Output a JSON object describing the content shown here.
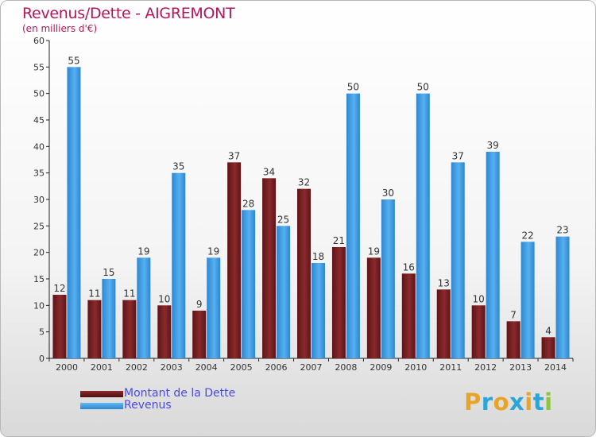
{
  "title": "Revenus/Dette - AIGREMONT",
  "subtitle": "(en milliers d'€)",
  "colors": {
    "title": "#b5165b",
    "dette": "#7a1f22",
    "revenus": "#3d9ce6",
    "legend_text": "#4a4adf"
  },
  "legend": [
    {
      "label": "Montant de la Dette",
      "color": "#7a1f22"
    },
    {
      "label": "Revenus",
      "color": "#3d9ce6"
    }
  ],
  "logo": {
    "text": "Proxiti",
    "letters": [
      {
        "ch": "P",
        "color": "#e8a428"
      },
      {
        "ch": "r",
        "color": "#2aa6d6"
      },
      {
        "ch": "o",
        "color": "#e8a428"
      },
      {
        "ch": "x",
        "color": "#2aa6d6"
      },
      {
        "ch": "i",
        "color": "#e8a428"
      },
      {
        "ch": "t",
        "color": "#2aa6d6"
      },
      {
        "ch": "i",
        "color": "#8cc63f"
      }
    ]
  },
  "chart_data": {
    "type": "bar",
    "title": "Revenus/Dette - AIGREMONT",
    "subtitle": "(en milliers d'€)",
    "categories": [
      "2000",
      "2001",
      "2002",
      "2003",
      "2004",
      "2005",
      "2006",
      "2007",
      "2008",
      "2009",
      "2010",
      "2011",
      "2012",
      "2013",
      "2014"
    ],
    "series": [
      {
        "name": "Montant de la Dette",
        "color": "#7a1f22",
        "values": [
          12,
          11,
          11,
          10,
          9,
          37,
          34,
          32,
          21,
          19,
          16,
          13,
          10,
          7,
          4
        ]
      },
      {
        "name": "Revenus",
        "color": "#3d9ce6",
        "values": [
          55,
          15,
          19,
          35,
          19,
          28,
          25,
          18,
          50,
          30,
          50,
          37,
          39,
          22,
          23
        ]
      }
    ],
    "y_ticks": [
      0,
      5,
      10,
      15,
      20,
      25,
      30,
      35,
      40,
      45,
      50,
      55,
      60
    ],
    "ylim": [
      0,
      60
    ],
    "grid": false,
    "legend_position": "bottom-left"
  }
}
